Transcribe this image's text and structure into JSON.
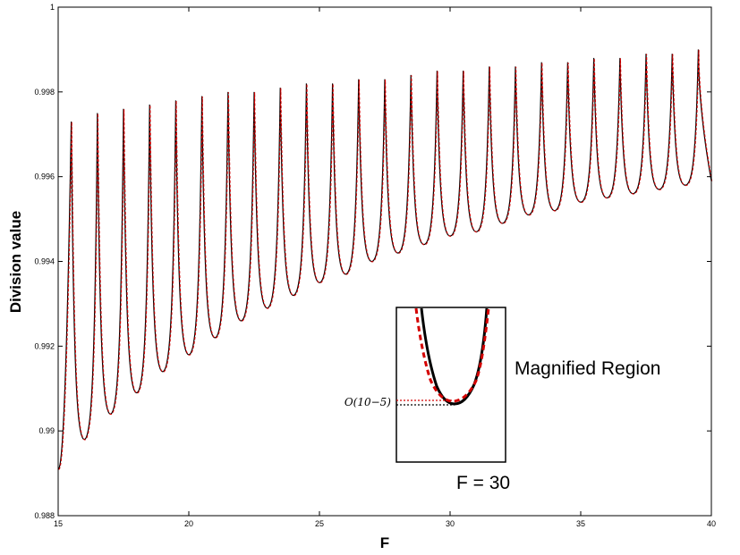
{
  "chart_data": {
    "type": "line",
    "xlabel": "F",
    "ylabel": "Division value",
    "xlim": [
      15,
      40
    ],
    "ylim": [
      0.988,
      1.0
    ],
    "x_ticks": [
      "15",
      "20",
      "25",
      "30",
      "35",
      "40"
    ],
    "y_ticks": [
      "0.988",
      "0.99",
      "0.992",
      "0.994",
      "0.996",
      "0.998",
      "1"
    ],
    "grid": false,
    "colors": {
      "series_1": "#000000",
      "series_2": "#d40000"
    },
    "series": [
      {
        "style": "solid black",
        "oscillation_period": 1,
        "minima": {
          "x": [
            16,
            17,
            18,
            19,
            20,
            21,
            22,
            23,
            24,
            25,
            26,
            27,
            28,
            29,
            30,
            31,
            32,
            33,
            34,
            35,
            36,
            37,
            38,
            39
          ],
          "y": [
            0.9898,
            0.9904,
            0.9909,
            0.9914,
            0.9918,
            0.9922,
            0.9926,
            0.9929,
            0.9932,
            0.9935,
            0.9937,
            0.994,
            0.9942,
            0.9944,
            0.9946,
            0.9947,
            0.9949,
            0.9951,
            0.9952,
            0.9954,
            0.9955,
            0.9956,
            0.9957,
            0.9958
          ]
        },
        "peaks": {
          "x": [
            15.5,
            16.5,
            17.5,
            18.5,
            19.5,
            20.5,
            21.5,
            22.5,
            23.5,
            24.5,
            25.5,
            26.5,
            27.5,
            28.5,
            29.5,
            30.5,
            31.5,
            32.5,
            33.5,
            34.5,
            35.5,
            36.5,
            37.5,
            38.5,
            39.5
          ],
          "y": [
            0.9973,
            0.9975,
            0.9976,
            0.9977,
            0.9978,
            0.9979,
            0.998,
            0.998,
            0.9981,
            0.9982,
            0.9982,
            0.9983,
            0.9983,
            0.9984,
            0.9985,
            0.9985,
            0.9986,
            0.9986,
            0.9987,
            0.9987,
            0.9988,
            0.9988,
            0.9989,
            0.9989,
            0.999
          ]
        },
        "start": {
          "x": 15,
          "y": 0.9891
        },
        "end": {
          "x": 40,
          "y": 0.9959
        }
      },
      {
        "style": "dashed red",
        "note": "overlaps the solid curve to within O(10^-5)"
      }
    ],
    "inset": {
      "caption": "F = 30",
      "annotation": "Magnified Region",
      "order_label": "O(10−5)"
    }
  }
}
